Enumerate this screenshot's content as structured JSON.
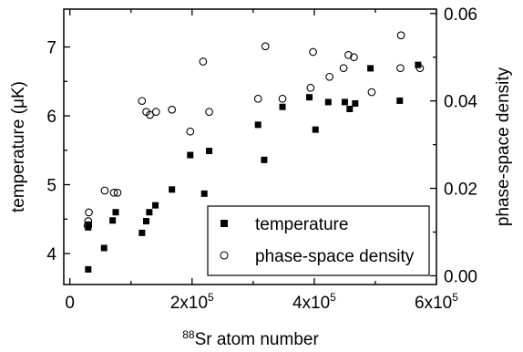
{
  "chart_data": {
    "type": "scatter",
    "xlabel_prefix": "88",
    "xlabel": "Sr atom number",
    "ylabel": "temperature (μK)",
    "y2label": "phase-space density",
    "xlim": [
      -10000,
      600000
    ],
    "ylim": [
      3.55,
      7.55
    ],
    "y2lim": [
      -0.002,
      0.061
    ],
    "x_ticks": [
      {
        "value": 0,
        "label": "0"
      },
      {
        "value": 200000,
        "label": "2x10",
        "exp": "5"
      },
      {
        "value": 400000,
        "label": "4x10",
        "exp": "5"
      },
      {
        "value": 600000,
        "label": "6x10",
        "exp": "5"
      }
    ],
    "y_ticks": [
      {
        "value": 4,
        "label": "4"
      },
      {
        "value": 5,
        "label": "5"
      },
      {
        "value": 6,
        "label": "6"
      },
      {
        "value": 7,
        "label": "7"
      }
    ],
    "y2_ticks": [
      {
        "value": 0.0,
        "label": "0.00"
      },
      {
        "value": 0.02,
        "label": "0.02"
      },
      {
        "value": 0.04,
        "label": "0.04"
      },
      {
        "value": 0.06,
        "label": "0.06"
      }
    ],
    "legend_position": "bottom-right",
    "series": [
      {
        "name": "temperature",
        "axis": "left",
        "marker": "filled-square",
        "points": [
          [
            30000,
            3.77
          ],
          [
            30000,
            4.38
          ],
          [
            31000,
            4.42
          ],
          [
            56000,
            4.08
          ],
          [
            70000,
            4.48
          ],
          [
            75000,
            4.6
          ],
          [
            118000,
            4.3
          ],
          [
            125000,
            4.47
          ],
          [
            130000,
            4.6
          ],
          [
            140000,
            4.7
          ],
          [
            167000,
            4.93
          ],
          [
            197000,
            5.43
          ],
          [
            220000,
            4.87
          ],
          [
            228000,
            5.49
          ],
          [
            308000,
            5.87
          ],
          [
            318000,
            5.36
          ],
          [
            348000,
            6.13
          ],
          [
            392000,
            6.27
          ],
          [
            402000,
            5.8
          ],
          [
            423000,
            6.2
          ],
          [
            450000,
            6.2
          ],
          [
            458000,
            6.1
          ],
          [
            467000,
            6.18
          ],
          [
            492000,
            6.69
          ],
          [
            540000,
            6.22
          ],
          [
            570000,
            6.74
          ]
        ]
      },
      {
        "name": "phase-space density",
        "axis": "right",
        "marker": "open-circle",
        "points": [
          [
            29000,
            0.0115
          ],
          [
            30000,
            0.0125
          ],
          [
            31000,
            0.0145
          ],
          [
            57000,
            0.0195
          ],
          [
            72000,
            0.019
          ],
          [
            78000,
            0.019
          ],
          [
            118000,
            0.04
          ],
          [
            125000,
            0.0375
          ],
          [
            131000,
            0.0368
          ],
          [
            141000,
            0.0375
          ],
          [
            167000,
            0.038
          ],
          [
            197000,
            0.033
          ],
          [
            218000,
            0.049
          ],
          [
            228000,
            0.0375
          ],
          [
            308000,
            0.0405
          ],
          [
            320000,
            0.0525
          ],
          [
            348000,
            0.0405
          ],
          [
            394000,
            0.043
          ],
          [
            398000,
            0.0512
          ],
          [
            425000,
            0.0455
          ],
          [
            448000,
            0.0475
          ],
          [
            456000,
            0.0505
          ],
          [
            465000,
            0.05
          ],
          [
            494000,
            0.042
          ],
          [
            541000,
            0.0475
          ],
          [
            542000,
            0.055
          ],
          [
            573000,
            0.0475
          ]
        ]
      }
    ]
  }
}
